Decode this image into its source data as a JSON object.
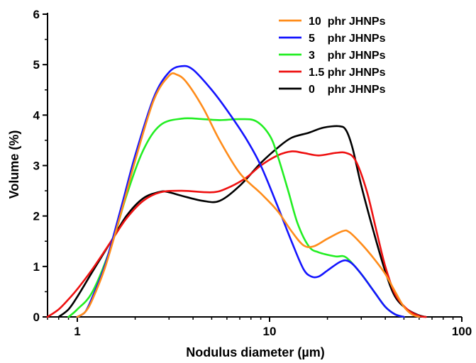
{
  "chart_data": {
    "type": "line",
    "xlabel": "Nodulus diameter (µm)",
    "ylabel": "Volume (%)",
    "x_scale": "log",
    "xlim": [
      0.7,
      100
    ],
    "ylim": [
      0,
      6
    ],
    "x_ticks": [
      1,
      10,
      100
    ],
    "x_tick_labels": [
      "1",
      "10",
      "100"
    ],
    "y_ticks": [
      0,
      1,
      2,
      3,
      4,
      5,
      6
    ],
    "y_tick_labels": [
      "0",
      "1",
      "2",
      "3",
      "4",
      "5",
      "6"
    ],
    "grid": false,
    "legend_position": "top-right",
    "series": [
      {
        "name": "10  phr JHNPs",
        "color": "#ff8c1a",
        "points": [
          [
            1.0,
            0
          ],
          [
            1.1,
            0.1
          ],
          [
            1.2,
            0.35
          ],
          [
            1.4,
            1.0
          ],
          [
            1.7,
            2.1
          ],
          [
            2.0,
            3.1
          ],
          [
            2.5,
            4.3
          ],
          [
            3.0,
            4.78
          ],
          [
            3.3,
            4.8
          ],
          [
            3.7,
            4.65
          ],
          [
            4.5,
            4.15
          ],
          [
            5.5,
            3.5
          ],
          [
            7,
            2.85
          ],
          [
            9,
            2.45
          ],
          [
            11,
            2.1
          ],
          [
            13,
            1.7
          ],
          [
            15,
            1.42
          ],
          [
            17,
            1.4
          ],
          [
            20,
            1.55
          ],
          [
            24,
            1.7
          ],
          [
            26,
            1.68
          ],
          [
            30,
            1.45
          ],
          [
            35,
            1.15
          ],
          [
            40,
            0.85
          ],
          [
            45,
            0.5
          ],
          [
            50,
            0.2
          ],
          [
            55,
            0.05
          ],
          [
            60,
            0
          ]
        ]
      },
      {
        "name": "5    phr JHNPs",
        "color": "#1414ff",
        "points": [
          [
            1.0,
            0
          ],
          [
            1.1,
            0.1
          ],
          [
            1.2,
            0.4
          ],
          [
            1.4,
            1.05
          ],
          [
            1.7,
            2.2
          ],
          [
            2.0,
            3.2
          ],
          [
            2.5,
            4.35
          ],
          [
            3.0,
            4.85
          ],
          [
            3.5,
            4.97
          ],
          [
            4.0,
            4.9
          ],
          [
            5.0,
            4.5
          ],
          [
            6.0,
            4.1
          ],
          [
            7.5,
            3.55
          ],
          [
            9,
            3.0
          ],
          [
            11,
            2.2
          ],
          [
            13,
            1.5
          ],
          [
            15,
            0.95
          ],
          [
            16.5,
            0.8
          ],
          [
            18,
            0.8
          ],
          [
            20,
            0.92
          ],
          [
            23,
            1.08
          ],
          [
            25,
            1.12
          ],
          [
            27,
            1.05
          ],
          [
            30,
            0.85
          ],
          [
            35,
            0.5
          ],
          [
            40,
            0.2
          ],
          [
            45,
            0.05
          ],
          [
            50,
            0
          ]
        ]
      },
      {
        "name": "3    phr JHNPs",
        "color": "#22ee22",
        "points": [
          [
            0.9,
            0
          ],
          [
            1.0,
            0.15
          ],
          [
            1.2,
            0.5
          ],
          [
            1.5,
            1.4
          ],
          [
            1.8,
            2.4
          ],
          [
            2.2,
            3.3
          ],
          [
            2.7,
            3.8
          ],
          [
            3.5,
            3.93
          ],
          [
            4.5,
            3.92
          ],
          [
            5.5,
            3.9
          ],
          [
            7,
            3.92
          ],
          [
            8.5,
            3.88
          ],
          [
            10,
            3.6
          ],
          [
            11,
            3.2
          ],
          [
            12.5,
            2.5
          ],
          [
            14,
            1.85
          ],
          [
            16,
            1.4
          ],
          [
            18,
            1.28
          ],
          [
            22,
            1.2
          ],
          [
            25,
            1.18
          ],
          [
            30,
            0.85
          ],
          [
            35,
            0.5
          ],
          [
            40,
            0.2
          ],
          [
            45,
            0.05
          ],
          [
            50,
            0
          ]
        ]
      },
      {
        "name": "1.5 phr JHNPs",
        "color": "#ee1111",
        "points": [
          [
            0.7,
            0
          ],
          [
            0.8,
            0.15
          ],
          [
            0.9,
            0.35
          ],
          [
            1.0,
            0.55
          ],
          [
            1.2,
            0.95
          ],
          [
            1.5,
            1.5
          ],
          [
            1.8,
            1.95
          ],
          [
            2.2,
            2.3
          ],
          [
            2.7,
            2.47
          ],
          [
            3.5,
            2.5
          ],
          [
            5,
            2.47
          ],
          [
            6,
            2.55
          ],
          [
            7.5,
            2.75
          ],
          [
            9,
            3.0
          ],
          [
            11,
            3.2
          ],
          [
            13,
            3.28
          ],
          [
            15,
            3.25
          ],
          [
            18,
            3.2
          ],
          [
            22,
            3.25
          ],
          [
            25,
            3.25
          ],
          [
            28,
            3.1
          ],
          [
            32,
            2.5
          ],
          [
            36,
            1.7
          ],
          [
            40,
            1.0
          ],
          [
            45,
            0.45
          ],
          [
            52,
            0.15
          ],
          [
            60,
            0.02
          ],
          [
            65,
            0
          ]
        ]
      },
      {
        "name": "0    phr JHNPs",
        "color": "#000000",
        "points": [
          [
            0.8,
            0
          ],
          [
            0.9,
            0.15
          ],
          [
            1.0,
            0.4
          ],
          [
            1.2,
            0.9
          ],
          [
            1.5,
            1.5
          ],
          [
            1.8,
            2.0
          ],
          [
            2.2,
            2.35
          ],
          [
            2.7,
            2.48
          ],
          [
            3.0,
            2.47
          ],
          [
            3.5,
            2.4
          ],
          [
            4.5,
            2.3
          ],
          [
            5.5,
            2.3
          ],
          [
            7,
            2.6
          ],
          [
            9,
            3.05
          ],
          [
            11,
            3.35
          ],
          [
            13,
            3.55
          ],
          [
            16,
            3.65
          ],
          [
            19,
            3.75
          ],
          [
            23,
            3.78
          ],
          [
            25,
            3.7
          ],
          [
            27,
            3.35
          ],
          [
            30,
            2.6
          ],
          [
            35,
            1.65
          ],
          [
            40,
            0.9
          ],
          [
            45,
            0.4
          ],
          [
            52,
            0.15
          ],
          [
            60,
            0.03
          ],
          [
            65,
            0
          ]
        ]
      }
    ]
  }
}
